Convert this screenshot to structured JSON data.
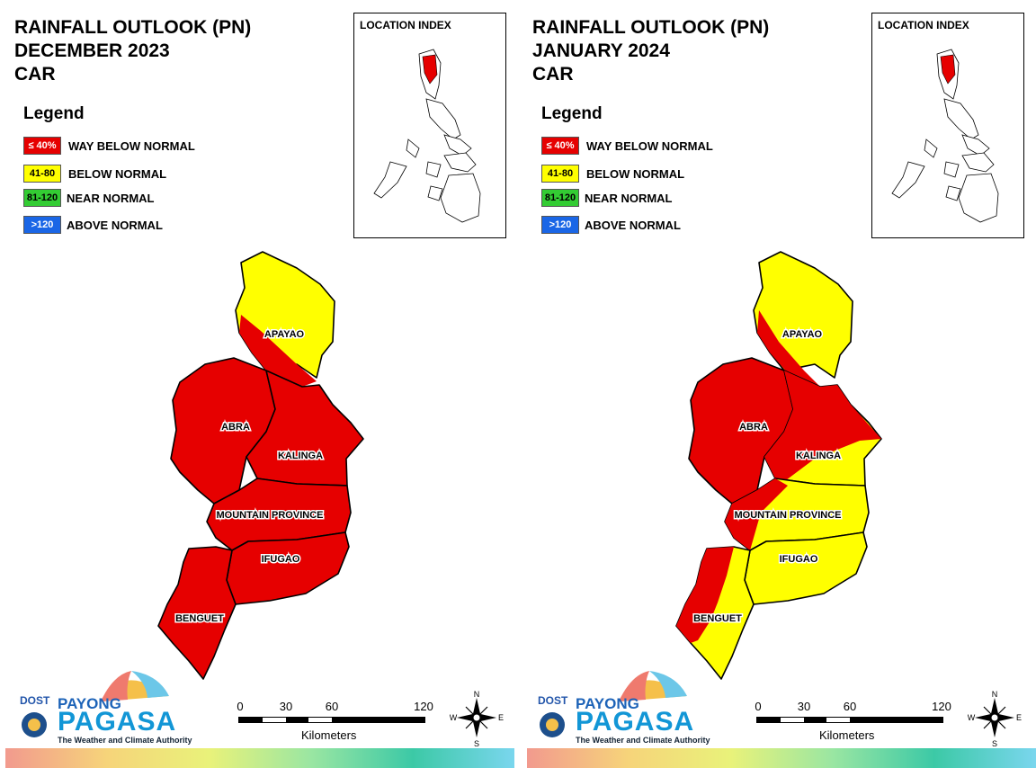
{
  "legend": {
    "title": "Legend",
    "items": [
      {
        "code": "≤ 40%",
        "label": "WAY BELOW NORMAL",
        "color": "#e60000",
        "text_color": "#ffffff"
      },
      {
        "code": "41-80",
        "label": "BELOW NORMAL",
        "color": "#ffff00",
        "text_color": "#000000"
      },
      {
        "code": "81-120",
        "label": "NEAR NORMAL",
        "color": "#33cc33",
        "text_color": "#000000"
      },
      {
        "code": ">120",
        "label": "ABOVE NORMAL",
        "color": "#1a66e6",
        "text_color": "#ffffff"
      }
    ]
  },
  "location_index": {
    "title": "LOCATION INDEX"
  },
  "scale": {
    "ticks": [
      "0",
      "30",
      "60",
      "120"
    ],
    "units": "Kilometers"
  },
  "compass": {
    "n": "N",
    "s": "S",
    "e": "E",
    "w": "W"
  },
  "branding": {
    "dost": "DOST",
    "payong": "PAYONG",
    "pagasa": "PAGASA",
    "tagline": "The Weather and Climate Authority"
  },
  "provinces": [
    "APAYAO",
    "ABRA",
    "KALINGA",
    "MOUNTAIN PROVINCE",
    "IFUGAO",
    "BENGUET"
  ],
  "maps": [
    {
      "title_line1": "RAINFALL OUTLOOK (PN)",
      "title_line2": "DECEMBER 2023",
      "title_line3": "CAR",
      "province_category": {
        "APAYAO": "mixed",
        "ABRA": "WAY BELOW NORMAL",
        "KALINGA": "WAY BELOW NORMAL",
        "MOUNTAIN PROVINCE": "WAY BELOW NORMAL",
        "IFUGAO": "WAY BELOW NORMAL",
        "BENGUET": "WAY BELOW NORMAL"
      }
    },
    {
      "title_line1": "RAINFALL OUTLOOK (PN)",
      "title_line2": "JANUARY 2024",
      "title_line3": "CAR",
      "province_category": {
        "APAYAO": "mixed",
        "ABRA": "WAY BELOW NORMAL",
        "KALINGA": "mixed",
        "MOUNTAIN PROVINCE": "mixed",
        "IFUGAO": "BELOW NORMAL",
        "BENGUET": "mixed"
      }
    }
  ]
}
